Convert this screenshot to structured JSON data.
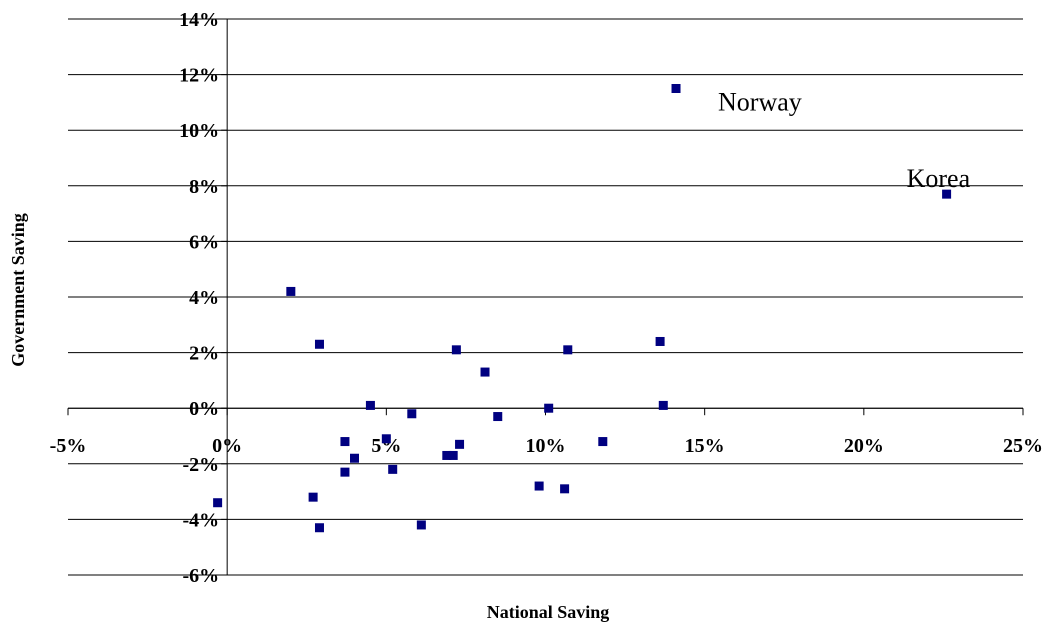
{
  "chart_data": {
    "type": "scatter",
    "xlabel": "National Saving",
    "ylabel": "Government Saving",
    "xlim": [
      -0.05,
      0.25
    ],
    "ylim": [
      -0.06,
      0.14
    ],
    "x_ticks": [
      -0.05,
      0,
      0.05,
      0.1,
      0.15,
      0.2,
      0.25
    ],
    "x_tick_labels": [
      "-5%",
      "0%",
      "5%",
      "10%",
      "15%",
      "20%",
      "25%"
    ],
    "y_ticks": [
      -0.06,
      -0.04,
      -0.02,
      0,
      0.02,
      0.04,
      0.06,
      0.08,
      0.1,
      0.12,
      0.14
    ],
    "y_tick_labels": [
      "-6%",
      "-4%",
      "-2%",
      "0%",
      "2%",
      "4%",
      "6%",
      "8%",
      "10%",
      "12%",
      "14%"
    ],
    "grid": "horizontal",
    "legend": "none",
    "marker_color": "#000080",
    "points": [
      {
        "x": 0.141,
        "y": 0.115
      },
      {
        "x": 0.226,
        "y": 0.077
      },
      {
        "x": 0.02,
        "y": 0.042
      },
      {
        "x": 0.029,
        "y": 0.023
      },
      {
        "x": 0.072,
        "y": 0.021
      },
      {
        "x": 0.107,
        "y": 0.021
      },
      {
        "x": 0.136,
        "y": 0.024
      },
      {
        "x": 0.081,
        "y": 0.013
      },
      {
        "x": 0.045,
        "y": 0.001
      },
      {
        "x": 0.058,
        "y": -0.002
      },
      {
        "x": 0.085,
        "y": -0.003
      },
      {
        "x": 0.101,
        "y": 0.0
      },
      {
        "x": 0.137,
        "y": 0.001
      },
      {
        "x": 0.037,
        "y": -0.012
      },
      {
        "x": 0.05,
        "y": -0.011
      },
      {
        "x": 0.04,
        "y": -0.018
      },
      {
        "x": 0.073,
        "y": -0.013
      },
      {
        "x": 0.069,
        "y": -0.017
      },
      {
        "x": 0.071,
        "y": -0.017
      },
      {
        "x": 0.118,
        "y": -0.012
      },
      {
        "x": 0.037,
        "y": -0.023
      },
      {
        "x": 0.052,
        "y": -0.022
      },
      {
        "x": 0.027,
        "y": -0.032
      },
      {
        "x": 0.098,
        "y": -0.028
      },
      {
        "x": 0.106,
        "y": -0.029
      },
      {
        "x": -0.003,
        "y": -0.034
      },
      {
        "x": 0.029,
        "y": -0.043
      },
      {
        "x": 0.061,
        "y": -0.042
      }
    ],
    "annotations": [
      {
        "text": "Norway",
        "x": 0.141,
        "y": 0.115
      },
      {
        "text": "Korea",
        "x": 0.226,
        "y": 0.077
      }
    ]
  }
}
